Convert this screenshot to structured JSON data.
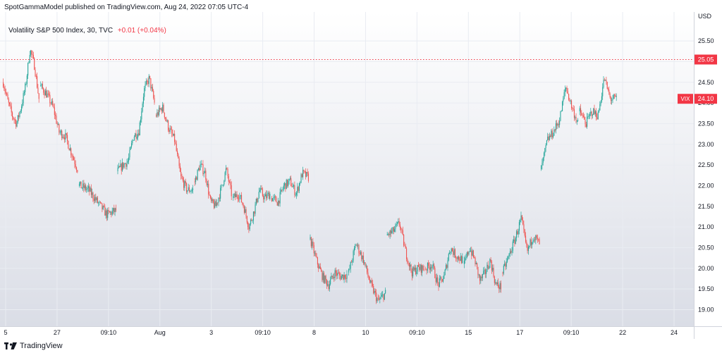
{
  "header": {
    "caption": "SpotGammaModel published on TradingView.com, Aug 24, 2022 07:05 UTC-4"
  },
  "legend": {
    "symbol_desc": "Volatility S&P 500 Index, 30, TVC",
    "change": "+0.01 (+0.04%)"
  },
  "footer": {
    "brand": "TradingView"
  },
  "colors": {
    "up": "#26a69a",
    "down": "#ef5350",
    "price_line": "#f23645",
    "grid": "#e9ecf2",
    "axis_text": "#131722"
  },
  "chart_data": {
    "type": "candlestick",
    "title": "Volatility S&P 500 Index, 30, TVC",
    "currency_label": "USD",
    "ylim": [
      18.6,
      26.2
    ],
    "yticks": [
      "25.50",
      "25.00",
      "24.50",
      "24.00",
      "23.50",
      "23.00",
      "22.50",
      "22.00",
      "21.50",
      "21.00",
      "20.50",
      "20.00",
      "19.50",
      "19.00"
    ],
    "xticks": [
      "5",
      "27",
      "09:10",
      "Aug",
      "3",
      "09:10",
      "8",
      "10",
      "09:10",
      "15",
      "17",
      "09:10",
      "22",
      "24"
    ],
    "horizontal_line": {
      "value": 25.05,
      "label": "25.05"
    },
    "last_price": {
      "symbol": "VIX",
      "value": 24.1,
      "label": "24.10"
    },
    "sessions": [
      {
        "from": 0,
        "to": 39,
        "start": 24.5,
        "end": 24.1,
        "path": [
          24.05,
          23.7,
          23.5,
          23.9,
          24.4,
          25.3,
          24.9
        ]
      },
      {
        "from": 41,
        "to": 81,
        "start": 24.4,
        "end": 22.4,
        "path": [
          24.2,
          23.9,
          23.3,
          23.2,
          22.8
        ]
      },
      {
        "from": 83,
        "to": 123,
        "start": 22.0,
        "end": 21.4,
        "path": [
          21.9,
          21.6,
          21.3
        ]
      },
      {
        "from": 125,
        "to": 165,
        "start": 22.35,
        "end": 24.0,
        "path": [
          22.5,
          22.6,
          23.2,
          23.3,
          24.3,
          24.6
        ]
      },
      {
        "from": 167,
        "to": 207,
        "start": 23.7,
        "end": 21.9,
        "path": [
          23.9,
          23.4,
          23.1,
          22.2,
          21.9
        ]
      },
      {
        "from": 209,
        "to": 249,
        "start": 22.1,
        "end": 21.8,
        "path": [
          22.5,
          22.3,
          21.6,
          21.5,
          21.9,
          22.4
        ]
      },
      {
        "from": 251,
        "to": 291,
        "start": 21.7,
        "end": 21.8,
        "path": [
          21.8,
          21.5,
          21.0,
          21.4,
          21.9,
          21.7
        ]
      },
      {
        "from": 293,
        "to": 333,
        "start": 21.7,
        "end": 22.2,
        "path": [
          21.6,
          22.0,
          22.1,
          21.8,
          22.3
        ]
      },
      {
        "from": 335,
        "to": 375,
        "start": 20.7,
        "end": 19.85,
        "path": [
          20.2,
          19.8,
          19.6,
          19.9,
          19.8
        ]
      },
      {
        "from": 377,
        "to": 417,
        "start": 19.9,
        "end": 19.4,
        "path": [
          20.6,
          20.2,
          19.6,
          19.2
        ]
      },
      {
        "from": 419,
        "to": 459,
        "start": 20.8,
        "end": 20.0,
        "path": [
          20.9,
          21.1,
          20.4,
          19.9,
          20.0
        ]
      },
      {
        "from": 461,
        "to": 501,
        "start": 20.0,
        "end": 20.2,
        "path": [
          20.1,
          19.6,
          19.8,
          20.5,
          20.3
        ]
      },
      {
        "from": 503,
        "to": 543,
        "start": 20.1,
        "end": 19.55,
        "path": [
          20.5,
          20.2,
          19.7,
          19.9,
          20.2,
          19.6
        ]
      },
      {
        "from": 545,
        "to": 585,
        "start": 19.9,
        "end": 20.6,
        "path": [
          20.3,
          20.7,
          21.2,
          20.4,
          20.8
        ]
      },
      {
        "from": 587,
        "to": 627,
        "start": 22.4,
        "end": 23.5,
        "path": [
          23.1,
          23.3,
          23.6,
          24.4,
          23.9
        ]
      },
      {
        "from": 629,
        "to": 669,
        "start": 23.8,
        "end": 24.1,
        "path": [
          23.5,
          23.8,
          23.7,
          24.6,
          24.1
        ]
      }
    ]
  }
}
